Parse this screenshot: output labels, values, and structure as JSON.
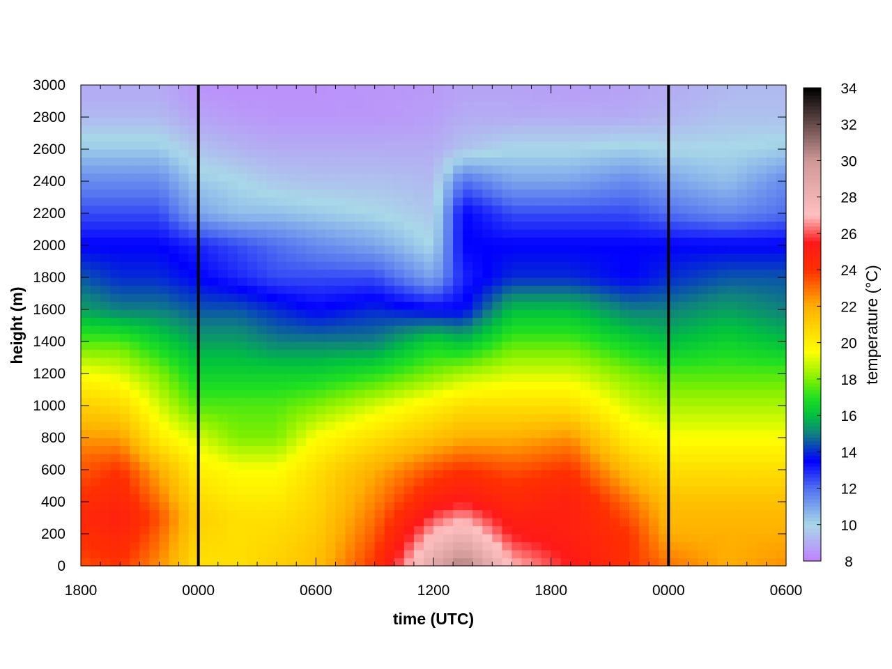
{
  "chart_data": {
    "type": "heatmap",
    "title": "",
    "xlabel": "time (UTC)",
    "ylabel": "height (m)",
    "colorbar_label": "temperature (°C)",
    "x_tick_labels": [
      "1800",
      "0000",
      "0600",
      "1200",
      "1800",
      "0000",
      "0600"
    ],
    "x_range_hours": [
      0,
      36
    ],
    "y_ticks": [
      0,
      200,
      400,
      600,
      800,
      1000,
      1200,
      1400,
      1600,
      1800,
      2000,
      2200,
      2400,
      2600,
      2800,
      3000
    ],
    "ylim": [
      0,
      3000
    ],
    "colorbar_ticks": [
      8,
      10,
      12,
      14,
      16,
      18,
      20,
      22,
      24,
      26,
      28,
      30,
      32,
      34
    ],
    "clim": [
      8,
      34
    ],
    "colormap": [
      {
        "value": 8,
        "color": "#c080ff"
      },
      {
        "value": 10,
        "color": "#a8d8e8"
      },
      {
        "value": 12,
        "color": "#5070f0"
      },
      {
        "value": 13.5,
        "color": "#0000ff"
      },
      {
        "value": 15,
        "color": "#108080"
      },
      {
        "value": 16,
        "color": "#00c040"
      },
      {
        "value": 17,
        "color": "#20e020"
      },
      {
        "value": 18,
        "color": "#80f000"
      },
      {
        "value": 19.5,
        "color": "#ffff00"
      },
      {
        "value": 22,
        "color": "#ffb000"
      },
      {
        "value": 24,
        "color": "#ff3000"
      },
      {
        "value": 25.5,
        "color": "#ff1818"
      },
      {
        "value": 27,
        "color": "#ffc0c0"
      },
      {
        "value": 30,
        "color": "#d09898"
      },
      {
        "value": 34,
        "color": "#000000"
      }
    ],
    "vertical_lines_hours": [
      6,
      30
    ],
    "grid": false,
    "heights": [
      0,
      50,
      100,
      150,
      200,
      250,
      300,
      350,
      400,
      450,
      500,
      550,
      600,
      650,
      700,
      750,
      800,
      850,
      900,
      950,
      1000,
      1050,
      1100,
      1150,
      1200,
      1250,
      1300,
      1350,
      1400,
      1450,
      1500,
      1550,
      1600,
      1650,
      1700,
      1750,
      1800,
      1850,
      1900,
      1950,
      2000,
      2050,
      2100,
      2150,
      2200,
      2250,
      2300,
      2350,
      2400,
      2450,
      2500,
      2550,
      2600,
      2650,
      2700,
      2750,
      2800,
      2850,
      2900,
      2950
    ],
    "profiles": [
      {
        "time_h": 0,
        "points": [
          [
            0,
            23.5
          ],
          [
            300,
            24.5
          ],
          [
            700,
            23
          ],
          [
            1000,
            21
          ],
          [
            1200,
            19.5
          ],
          [
            1400,
            17.5
          ],
          [
            1600,
            15.5
          ],
          [
            1800,
            14.5
          ],
          [
            2000,
            13.5
          ],
          [
            2200,
            12.5
          ],
          [
            2400,
            11.5
          ],
          [
            2600,
            10.3
          ],
          [
            2800,
            9.3
          ],
          [
            2950,
            9
          ]
        ]
      },
      {
        "time_h": 2,
        "points": [
          [
            0,
            24
          ],
          [
            300,
            25
          ],
          [
            600,
            24
          ],
          [
            900,
            21.5
          ],
          [
            1150,
            19.5
          ],
          [
            1400,
            17.5
          ],
          [
            1600,
            15
          ],
          [
            1800,
            14
          ],
          [
            2000,
            13.5
          ],
          [
            2200,
            12.5
          ],
          [
            2400,
            11.5
          ],
          [
            2600,
            10.3
          ],
          [
            2800,
            9.3
          ],
          [
            2950,
            9
          ]
        ]
      },
      {
        "time_h": 4,
        "points": [
          [
            0,
            22.5
          ],
          [
            300,
            23.5
          ],
          [
            600,
            22
          ],
          [
            800,
            20
          ],
          [
            1000,
            19
          ],
          [
            1200,
            18
          ],
          [
            1400,
            16.5
          ],
          [
            1600,
            15
          ],
          [
            1800,
            14
          ],
          [
            2000,
            13.5
          ],
          [
            2200,
            12.5
          ],
          [
            2400,
            11.5
          ],
          [
            2600,
            10.3
          ],
          [
            2800,
            9.3
          ],
          [
            2950,
            9
          ]
        ]
      },
      {
        "time_h": 6,
        "points": [
          [
            0,
            20.5
          ],
          [
            300,
            21
          ],
          [
            600,
            20
          ],
          [
            800,
            19
          ],
          [
            1000,
            17.5
          ],
          [
            1200,
            16.5
          ],
          [
            1400,
            15.5
          ],
          [
            1600,
            14.5
          ],
          [
            1800,
            13.5
          ],
          [
            2000,
            13
          ],
          [
            2200,
            11
          ],
          [
            2400,
            10.3
          ],
          [
            2600,
            9.5
          ],
          [
            2800,
            8.8
          ],
          [
            2950,
            8.5
          ]
        ]
      },
      {
        "time_h": 8,
        "points": [
          [
            0,
            20.5
          ],
          [
            300,
            20.5
          ],
          [
            600,
            19.5
          ],
          [
            800,
            18
          ],
          [
            1000,
            17.5
          ],
          [
            1200,
            16.5
          ],
          [
            1400,
            15.5
          ],
          [
            1600,
            14.5
          ],
          [
            1800,
            13
          ],
          [
            2000,
            12.5
          ],
          [
            2200,
            10.5
          ],
          [
            2400,
            10
          ],
          [
            2600,
            9.2
          ],
          [
            2800,
            8.6
          ],
          [
            2950,
            8.4
          ]
        ]
      },
      {
        "time_h": 10,
        "points": [
          [
            0,
            21
          ],
          [
            300,
            20.5
          ],
          [
            600,
            19.5
          ],
          [
            800,
            18
          ],
          [
            1000,
            17.5
          ],
          [
            1200,
            16.5
          ],
          [
            1400,
            15
          ],
          [
            1600,
            14
          ],
          [
            1800,
            12.5
          ],
          [
            2000,
            12
          ],
          [
            2200,
            10.5
          ],
          [
            2400,
            9.6
          ],
          [
            2600,
            9
          ],
          [
            2800,
            8.5
          ],
          [
            2950,
            8.4
          ]
        ]
      },
      {
        "time_h": 12,
        "points": [
          [
            0,
            21.5
          ],
          [
            300,
            21
          ],
          [
            600,
            20.5
          ],
          [
            800,
            19.5
          ],
          [
            1000,
            18
          ],
          [
            1200,
            16.5
          ],
          [
            1400,
            15
          ],
          [
            1600,
            13.5
          ],
          [
            1800,
            12.5
          ],
          [
            2000,
            11.5
          ],
          [
            2200,
            10.3
          ],
          [
            2400,
            9.5
          ],
          [
            2600,
            9
          ],
          [
            2800,
            8.5
          ],
          [
            2950,
            8.4
          ]
        ]
      },
      {
        "time_h": 15,
        "points": [
          [
            0,
            24
          ],
          [
            300,
            23
          ],
          [
            600,
            22
          ],
          [
            800,
            20.5
          ],
          [
            1000,
            19
          ],
          [
            1200,
            17
          ],
          [
            1400,
            15
          ],
          [
            1600,
            14
          ],
          [
            1800,
            12.5
          ],
          [
            2000,
            11
          ],
          [
            2200,
            10
          ],
          [
            2400,
            9.5
          ],
          [
            2600,
            9
          ],
          [
            2800,
            8.5
          ],
          [
            2950,
            8.5
          ]
        ]
      },
      {
        "time_h": 18,
        "points": [
          [
            0,
            29
          ],
          [
            200,
            27
          ],
          [
            400,
            25
          ],
          [
            600,
            23.5
          ],
          [
            800,
            21.5
          ],
          [
            1000,
            20
          ],
          [
            1200,
            18
          ],
          [
            1400,
            16.5
          ],
          [
            1600,
            13.5
          ],
          [
            1800,
            11
          ],
          [
            2000,
            10
          ],
          [
            2200,
            9.6
          ],
          [
            2400,
            9.3
          ],
          [
            2600,
            9
          ],
          [
            2800,
            8.7
          ],
          [
            2950,
            8.6
          ]
        ]
      },
      {
        "time_h": 19.5,
        "points": [
          [
            0,
            31
          ],
          [
            200,
            28
          ],
          [
            400,
            25.5
          ],
          [
            600,
            24
          ],
          [
            800,
            22
          ],
          [
            1000,
            20.5
          ],
          [
            1200,
            18.5
          ],
          [
            1400,
            16
          ],
          [
            1600,
            13.5
          ],
          [
            1800,
            13
          ],
          [
            2000,
            13.5
          ],
          [
            2200,
            13.5
          ],
          [
            2400,
            12
          ],
          [
            2600,
            9.5
          ],
          [
            2800,
            9
          ],
          [
            2950,
            8.8
          ]
        ]
      },
      {
        "time_h": 22,
        "points": [
          [
            0,
            27
          ],
          [
            200,
            25.5
          ],
          [
            400,
            24.5
          ],
          [
            600,
            23.5
          ],
          [
            800,
            22
          ],
          [
            1000,
            20.5
          ],
          [
            1200,
            19
          ],
          [
            1400,
            17.5
          ],
          [
            1600,
            16
          ],
          [
            1800,
            14
          ],
          [
            2000,
            13.5
          ],
          [
            2200,
            12.5
          ],
          [
            2400,
            11
          ],
          [
            2600,
            10
          ],
          [
            2800,
            9
          ],
          [
            2950,
            8.8
          ]
        ]
      },
      {
        "time_h": 25,
        "points": [
          [
            0,
            25.5
          ],
          [
            200,
            25
          ],
          [
            400,
            25
          ],
          [
            600,
            24
          ],
          [
            800,
            22.5
          ],
          [
            1000,
            20.5
          ],
          [
            1200,
            19
          ],
          [
            1400,
            17.5
          ],
          [
            1600,
            16
          ],
          [
            1800,
            14
          ],
          [
            2000,
            13.5
          ],
          [
            2200,
            12.5
          ],
          [
            2400,
            11
          ],
          [
            2600,
            10
          ],
          [
            2800,
            9
          ],
          [
            2950,
            8.7
          ]
        ]
      },
      {
        "time_h": 28,
        "points": [
          [
            0,
            24
          ],
          [
            200,
            24
          ],
          [
            400,
            23
          ],
          [
            600,
            21.5
          ],
          [
            800,
            20
          ],
          [
            1000,
            19
          ],
          [
            1200,
            18
          ],
          [
            1400,
            16.5
          ],
          [
            1600,
            15
          ],
          [
            1800,
            13.5
          ],
          [
            2000,
            13.5
          ],
          [
            2200,
            12.5
          ],
          [
            2400,
            11.5
          ],
          [
            2600,
            10.2
          ],
          [
            2800,
            9
          ],
          [
            2950,
            8.8
          ]
        ]
      },
      {
        "time_h": 30,
        "points": [
          [
            0,
            23
          ],
          [
            200,
            22
          ],
          [
            400,
            21.5
          ],
          [
            600,
            20.5
          ],
          [
            800,
            19.5
          ],
          [
            1000,
            18.5
          ],
          [
            1200,
            17.5
          ],
          [
            1400,
            16
          ],
          [
            1600,
            15
          ],
          [
            1800,
            14
          ],
          [
            2000,
            13.5
          ],
          [
            2200,
            12
          ],
          [
            2400,
            11
          ],
          [
            2600,
            10
          ],
          [
            2800,
            9.2
          ],
          [
            2950,
            9
          ]
        ]
      },
      {
        "time_h": 33,
        "points": [
          [
            0,
            22
          ],
          [
            200,
            22
          ],
          [
            400,
            21.5
          ],
          [
            600,
            20.5
          ],
          [
            800,
            19.5
          ],
          [
            1000,
            18.5
          ],
          [
            1200,
            17.5
          ],
          [
            1400,
            16.5
          ],
          [
            1600,
            15.5
          ],
          [
            1800,
            14.5
          ],
          [
            2000,
            13.5
          ],
          [
            2200,
            11.5
          ],
          [
            2400,
            10.5
          ],
          [
            2600,
            10
          ],
          [
            2800,
            9.5
          ],
          [
            2950,
            9.3
          ]
        ]
      },
      {
        "time_h": 36,
        "points": [
          [
            0,
            22.5
          ],
          [
            200,
            22
          ],
          [
            400,
            21.5
          ],
          [
            600,
            20.5
          ],
          [
            800,
            19.5
          ],
          [
            1000,
            18.5
          ],
          [
            1200,
            17.5
          ],
          [
            1400,
            16
          ],
          [
            1600,
            15
          ],
          [
            1800,
            14.5
          ],
          [
            2000,
            13.5
          ],
          [
            2200,
            12
          ],
          [
            2400,
            11.5
          ],
          [
            2600,
            10.2
          ],
          [
            2800,
            9.5
          ],
          [
            2950,
            9.3
          ]
        ]
      }
    ]
  }
}
